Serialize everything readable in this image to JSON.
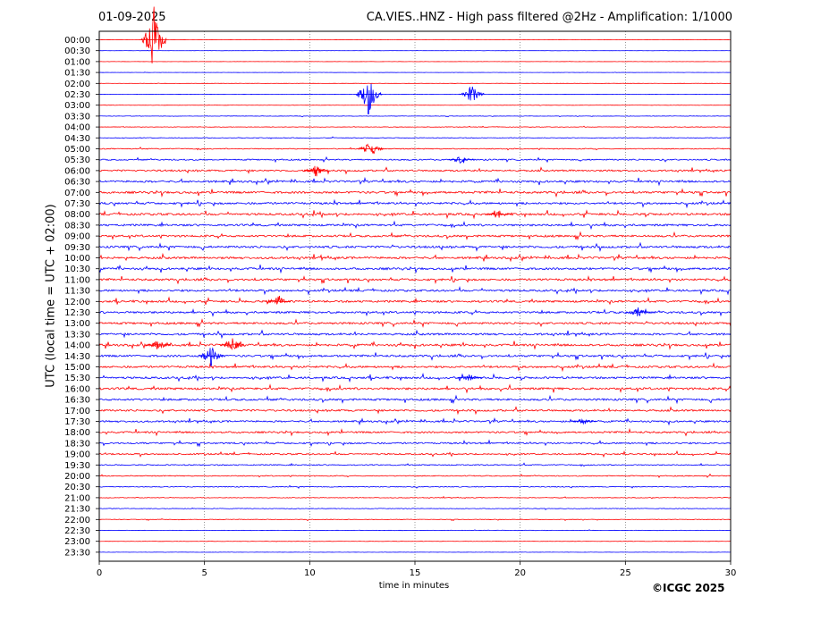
{
  "header": {
    "date": "01-09-2025",
    "title": "CA.VIES..HNZ - High pass filtered @2Hz - Amplification: 1/1000"
  },
  "footer": {
    "credit": "©ICGC 2025"
  },
  "chart_data": {
    "type": "line",
    "subtype": "helicorder",
    "xlabel": "time in minutes",
    "ylabel": "UTC (local time = UTC + 02:00)",
    "xlim": [
      0,
      30
    ],
    "xticks": [
      0,
      5,
      10,
      15,
      20,
      25,
      30
    ],
    "grid": "vertical dotted lines every 5 minutes",
    "row_labels": [
      "00:00",
      "00:30",
      "01:00",
      "01:30",
      "02:00",
      "02:30",
      "03:00",
      "03:30",
      "04:00",
      "04:30",
      "05:00",
      "05:30",
      "06:00",
      "06:30",
      "07:00",
      "07:30",
      "08:00",
      "08:30",
      "09:00",
      "09:30",
      "10:00",
      "10:30",
      "11:00",
      "11:30",
      "12:00",
      "12:30",
      "13:00",
      "13:30",
      "14:00",
      "14:30",
      "15:00",
      "15:30",
      "16:00",
      "16:30",
      "17:00",
      "17:30",
      "18:00",
      "18:30",
      "19:00",
      "19:30",
      "20:00",
      "20:30",
      "21:00",
      "21:30",
      "22:00",
      "22:30",
      "23:00",
      "23:30"
    ],
    "row_colors": [
      "#ff0000",
      "#0000ff"
    ],
    "activity_level": [
      0.3,
      0.3,
      0.3,
      0.3,
      0.35,
      0.4,
      0.4,
      0.6,
      0.8,
      1.0,
      1.4,
      2.0,
      2.6,
      3.0,
      3.2,
      3.0,
      3.2,
      3.0,
      3.0,
      3.2,
      3.2,
      3.2,
      3.0,
      3.0,
      3.0,
      3.0,
      3.0,
      3.0,
      3.2,
      3.0,
      3.0,
      3.0,
      3.2,
      3.0,
      2.8,
      2.6,
      2.6,
      2.4,
      2.2,
      1.6,
      1.4,
      1.3,
      1.0,
      0.9,
      0.9,
      0.6,
      0.5,
      0.4
    ],
    "events": [
      {
        "row": 0,
        "minute": 2.6,
        "amplitude": 70
      },
      {
        "row": 5,
        "minute": 12.8,
        "amplitude": 45
      },
      {
        "row": 5,
        "minute": 17.7,
        "amplitude": 20
      },
      {
        "row": 10,
        "minute": 12.9,
        "amplitude": 18
      },
      {
        "row": 11,
        "minute": 17.2,
        "amplitude": 10
      },
      {
        "row": 12,
        "minute": 10.3,
        "amplitude": 12
      },
      {
        "row": 16,
        "minute": 19.0,
        "amplitude": 8
      },
      {
        "row": 24,
        "minute": 8.5,
        "amplitude": 14
      },
      {
        "row": 25,
        "minute": 25.6,
        "amplitude": 10
      },
      {
        "row": 28,
        "minute": 2.8,
        "amplitude": 11
      },
      {
        "row": 28,
        "minute": 6.3,
        "amplitude": 16
      },
      {
        "row": 29,
        "minute": 5.3,
        "amplitude": 22
      },
      {
        "row": 31,
        "minute": 17.6,
        "amplitude": 7
      },
      {
        "row": 35,
        "minute": 23.0,
        "amplitude": 7
      }
    ]
  }
}
